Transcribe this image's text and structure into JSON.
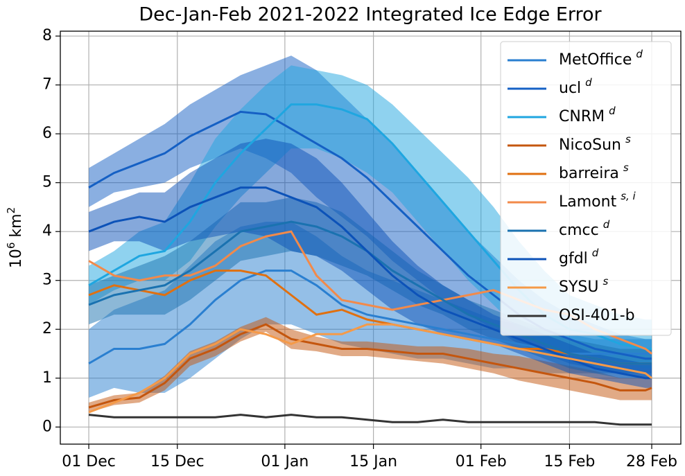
{
  "chart_data": {
    "type": "line",
    "title": "Dec-Jan-Feb 2021-2022 Integrated Ice Edge Error",
    "ylabel": {
      "base": "10",
      "base_sup": "6",
      "unit": " km",
      "unit_sup": "2"
    },
    "x": [
      0,
      4,
      8,
      12,
      16,
      20,
      24,
      28,
      32,
      36,
      40,
      44,
      48,
      52,
      56,
      60,
      64,
      68,
      72,
      76,
      80,
      84,
      88,
      89
    ],
    "xlim": [
      -4.5,
      93.6
    ],
    "xticks": [
      {
        "value": 0,
        "label": "01 Dec"
      },
      {
        "value": 14,
        "label": "15 Dec"
      },
      {
        "value": 31,
        "label": "01 Jan"
      },
      {
        "value": 45,
        "label": "15 Jan"
      },
      {
        "value": 62,
        "label": "01 Feb"
      },
      {
        "value": 76,
        "label": "15 Feb"
      },
      {
        "value": 89,
        "label": "28 Feb"
      }
    ],
    "ylim": [
      -0.35,
      8.1
    ],
    "yticks": [
      0,
      1,
      2,
      3,
      4,
      5,
      6,
      7,
      8
    ],
    "grid": true,
    "legend": "upper right",
    "series": [
      {
        "name": "MetOffice",
        "sup": "d",
        "color": "#2a7fd0",
        "values": [
          1.3,
          1.6,
          1.6,
          1.7,
          2.1,
          2.6,
          3.0,
          3.2,
          3.2,
          2.9,
          2.5,
          2.3,
          2.2,
          2.1,
          2.0,
          1.9,
          1.8,
          1.7,
          1.6,
          1.5,
          1.5,
          1.5,
          1.5,
          1.5
        ],
        "lower": [
          0.6,
          0.8,
          0.7,
          0.7,
          1.0,
          1.4,
          1.8,
          2.1,
          2.1,
          1.9,
          1.7,
          1.6,
          1.5,
          1.4,
          1.4,
          1.3,
          1.2,
          1.2,
          1.1,
          1.1,
          1.1,
          1.1,
          1.1,
          1.1
        ],
        "upper": [
          2.0,
          2.4,
          2.6,
          2.8,
          3.3,
          3.8,
          4.1,
          4.2,
          4.2,
          3.9,
          3.5,
          3.2,
          3.0,
          2.8,
          2.6,
          2.4,
          2.2,
          2.1,
          2.0,
          1.9,
          1.8,
          1.8,
          1.8,
          1.8
        ]
      },
      {
        "name": "ucl",
        "sup": "d",
        "color": "#1560c4",
        "values": [
          4.9,
          5.2,
          5.4,
          5.6,
          5.95,
          6.2,
          6.45,
          6.4,
          6.1,
          5.8,
          5.5,
          5.1,
          4.6,
          4.1,
          3.6,
          3.1,
          2.7,
          2.3,
          2.0,
          1.8,
          1.6,
          1.5,
          1.4,
          1.4
        ],
        "lower": [
          4.5,
          4.8,
          4.9,
          5.0,
          5.3,
          5.5,
          5.7,
          5.5,
          5.2,
          4.7,
          4.3,
          3.9,
          3.4,
          3.0,
          2.6,
          2.3,
          2.0,
          1.7,
          1.5,
          1.3,
          1.2,
          1.1,
          1.0,
          1.0
        ],
        "upper": [
          5.3,
          5.6,
          5.9,
          6.2,
          6.6,
          6.9,
          7.2,
          7.4,
          7.6,
          7.3,
          6.8,
          6.3,
          5.8,
          5.2,
          4.6,
          4.0,
          3.5,
          3.0,
          2.6,
          2.3,
          2.1,
          1.9,
          1.8,
          1.8
        ]
      },
      {
        "name": "CNRM",
        "sup": "d",
        "color": "#1fa6e0",
        "values": [
          2.9,
          3.2,
          3.5,
          3.6,
          4.2,
          5.0,
          5.6,
          6.1,
          6.6,
          6.6,
          6.5,
          6.3,
          5.8,
          5.2,
          4.6,
          4.0,
          3.4,
          2.8,
          2.3,
          2.0,
          1.9,
          1.7,
          1.6,
          1.6
        ],
        "lower": [
          2.5,
          2.8,
          3.0,
          3.0,
          3.4,
          4.1,
          4.7,
          5.2,
          5.7,
          5.7,
          5.5,
          5.2,
          4.8,
          4.2,
          3.6,
          3.0,
          2.5,
          2.0,
          1.7,
          1.5,
          1.4,
          1.3,
          1.2,
          1.2
        ],
        "upper": [
          3.3,
          3.6,
          4.0,
          4.2,
          5.0,
          5.9,
          6.5,
          7.0,
          7.4,
          7.3,
          7.2,
          7.0,
          6.6,
          6.1,
          5.6,
          5.1,
          4.5,
          3.8,
          3.2,
          2.7,
          2.5,
          2.3,
          2.2,
          2.2
        ]
      },
      {
        "name": "NicoSun",
        "sup": "s",
        "color": "#c4560e",
        "values": [
          0.4,
          0.55,
          0.6,
          0.9,
          1.4,
          1.6,
          1.9,
          2.1,
          1.8,
          1.7,
          1.6,
          1.6,
          1.55,
          1.5,
          1.5,
          1.4,
          1.3,
          1.2,
          1.1,
          1.0,
          0.9,
          0.75,
          0.75,
          0.8
        ],
        "lower": [
          0.3,
          0.45,
          0.5,
          0.75,
          1.25,
          1.45,
          1.75,
          1.95,
          1.6,
          1.55,
          1.45,
          1.45,
          1.4,
          1.35,
          1.3,
          1.2,
          1.1,
          0.95,
          0.85,
          0.75,
          0.65,
          0.55,
          0.55,
          0.55
        ],
        "upper": [
          0.5,
          0.65,
          0.7,
          1.05,
          1.55,
          1.75,
          2.05,
          2.25,
          2.0,
          1.85,
          1.75,
          1.75,
          1.7,
          1.65,
          1.65,
          1.6,
          1.5,
          1.45,
          1.35,
          1.25,
          1.15,
          1.0,
          1.0,
          1.05
        ]
      },
      {
        "name": "barreira",
        "sup": "s",
        "color": "#e07010",
        "values": [
          2.7,
          2.9,
          2.8,
          2.7,
          3.0,
          3.2,
          3.2,
          3.1,
          2.7,
          2.3,
          2.4,
          2.2,
          2.1,
          2.0,
          1.9,
          1.8,
          1.7,
          1.6,
          1.6,
          1.5,
          1.4,
          1.3,
          1.3,
          1.3
        ]
      },
      {
        "name": "Lamont",
        "sup": "s, i",
        "color": "#f28a4a",
        "values": [
          3.4,
          3.1,
          3.0,
          3.1,
          3.1,
          3.3,
          3.7,
          3.9,
          4.0,
          3.1,
          2.6,
          2.5,
          2.4,
          2.5,
          2.6,
          2.7,
          2.8,
          2.6,
          2.4,
          2.3,
          2.0,
          1.8,
          1.6,
          1.5
        ]
      },
      {
        "name": "cmcc",
        "sup": "d",
        "color": "#1a72b0",
        "values": [
          2.5,
          2.7,
          2.8,
          2.9,
          3.2,
          3.6,
          4.0,
          4.1,
          4.2,
          4.1,
          3.9,
          3.6,
          3.2,
          2.9,
          2.6,
          2.3,
          2.1,
          1.9,
          1.7,
          1.5,
          1.4,
          1.3,
          1.3,
          1.3
        ],
        "lower": [
          2.1,
          2.3,
          2.3,
          2.3,
          2.6,
          3.0,
          3.4,
          3.5,
          3.6,
          3.5,
          3.3,
          3.1,
          2.8,
          2.5,
          2.3,
          2.0,
          1.8,
          1.6,
          1.4,
          1.2,
          1.1,
          1.0,
          1.0,
          1.0
        ],
        "upper": [
          2.9,
          3.1,
          3.3,
          3.5,
          3.8,
          4.2,
          4.6,
          4.6,
          4.7,
          4.6,
          4.4,
          4.0,
          3.6,
          3.2,
          2.9,
          2.6,
          2.4,
          2.2,
          2.0,
          1.8,
          1.7,
          1.6,
          1.6,
          1.6
        ]
      },
      {
        "name": "gfdl",
        "sup": "d",
        "color": "#0c52b8",
        "values": [
          4.0,
          4.2,
          4.3,
          4.2,
          4.5,
          4.7,
          4.9,
          4.9,
          4.7,
          4.5,
          4.1,
          3.6,
          3.1,
          2.7,
          2.4,
          2.2,
          2.0,
          1.8,
          1.6,
          1.4,
          1.2,
          1.1,
          1.0,
          1.0
        ],
        "lower": [
          3.6,
          3.8,
          3.8,
          3.6,
          3.8,
          3.9,
          4.0,
          3.9,
          3.6,
          3.5,
          3.2,
          2.8,
          2.4,
          2.1,
          1.9,
          1.8,
          1.7,
          1.5,
          1.3,
          1.1,
          1.0,
          0.9,
          0.8,
          0.8
        ],
        "upper": [
          4.4,
          4.6,
          4.8,
          4.8,
          5.2,
          5.5,
          5.8,
          5.9,
          5.8,
          5.5,
          5.0,
          4.4,
          3.8,
          3.3,
          2.9,
          2.6,
          2.3,
          2.1,
          1.9,
          1.7,
          1.5,
          1.4,
          1.3,
          1.3
        ]
      },
      {
        "name": "SYSU",
        "sup": "s",
        "color": "#f59a48",
        "values": [
          0.3,
          0.5,
          0.7,
          1.0,
          1.5,
          1.7,
          2.0,
          1.9,
          1.7,
          1.9,
          1.9,
          2.1,
          2.1,
          2.0,
          1.9,
          1.8,
          1.7,
          1.6,
          1.5,
          1.4,
          1.3,
          1.2,
          1.1,
          1.0
        ]
      },
      {
        "name": "OSI-401-b",
        "color": "#333333",
        "values": [
          0.25,
          0.2,
          0.2,
          0.2,
          0.2,
          0.2,
          0.25,
          0.2,
          0.25,
          0.2,
          0.2,
          0.15,
          0.1,
          0.1,
          0.15,
          0.1,
          0.1,
          0.1,
          0.1,
          0.1,
          0.1,
          0.05,
          0.05,
          0.05
        ]
      }
    ]
  }
}
